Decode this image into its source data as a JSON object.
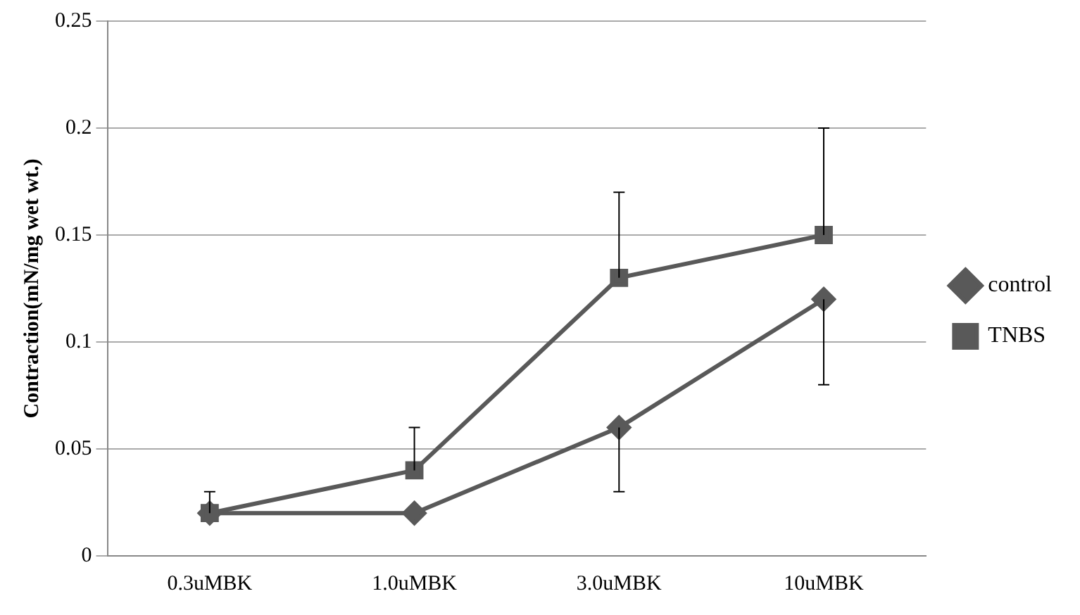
{
  "chart_data": {
    "type": "line",
    "ylabel": "Contraction(mN/mg wet wt.)",
    "categories": [
      "0.3uMBK",
      "1.0uMBK",
      "3.0uMBK",
      "10uMBK"
    ],
    "series": [
      {
        "name": "control",
        "color": "#595959",
        "marker": "diamond",
        "values": [
          0.02,
          0.02,
          0.06,
          0.12
        ],
        "errors": [
          null,
          null,
          [
            0.03,
            0.06
          ],
          [
            0.08,
            0.12
          ]
        ]
      },
      {
        "name": "TNBS",
        "color": "#595959",
        "marker": "square",
        "values": [
          0.02,
          0.04,
          0.13,
          0.15
        ],
        "errors": [
          [
            0.02,
            0.03
          ],
          [
            0.04,
            0.06
          ],
          [
            0.13,
            0.17
          ],
          [
            0.15,
            0.2
          ]
        ]
      }
    ],
    "ylim": [
      0,
      0.25
    ],
    "yticks": [
      0,
      0.05,
      0.1,
      0.15,
      0.2,
      0.25
    ],
    "grid": "y",
    "legend": "right",
    "line_style": "solid"
  }
}
